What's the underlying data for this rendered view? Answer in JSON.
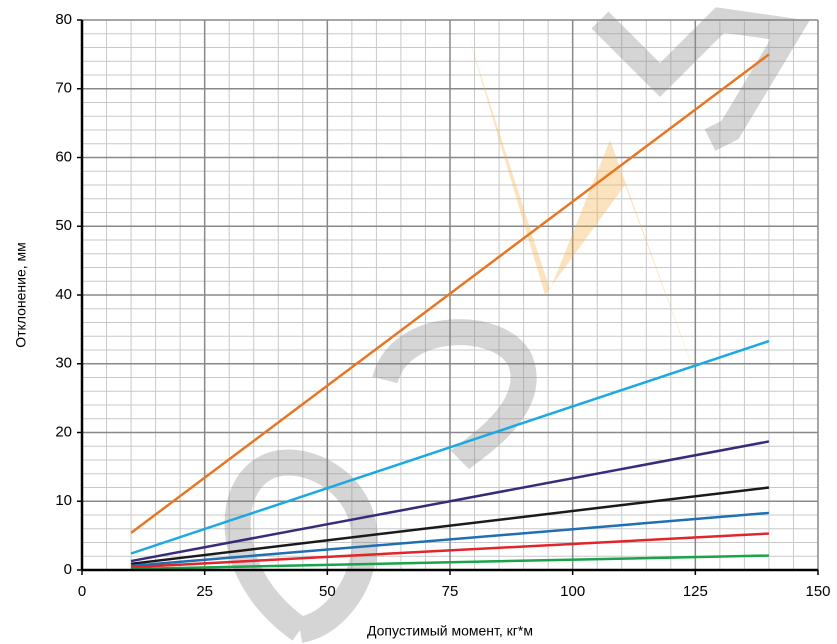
{
  "chart_data": {
    "type": "line",
    "x_label": "Допустимый момент, кг*м",
    "y_label": "Отклонение, мм",
    "xlim": [
      0,
      150
    ],
    "xticks": [
      0,
      25,
      50,
      75,
      100,
      125,
      150
    ],
    "ylim": [
      0,
      80
    ],
    "yticks": [
      0,
      10,
      20,
      30,
      40,
      50,
      60,
      70,
      80
    ],
    "grid": true,
    "x": [
      10,
      140
    ],
    "series": [
      {
        "color": "#e87722",
        "values": [
          5.4,
          75
        ]
      },
      {
        "color": "#1ca9e1",
        "values": [
          2.4,
          33.3
        ]
      },
      {
        "color": "#3a2a7a",
        "values": [
          1.3,
          18.7
        ]
      },
      {
        "color": "#1a1a1a",
        "values": [
          0.9,
          12
        ]
      },
      {
        "color": "#1f6fb5",
        "values": [
          0.6,
          8.3
        ]
      },
      {
        "color": "#e3242b",
        "values": [
          0.4,
          5.3
        ]
      },
      {
        "color": "#1aa34a",
        "values": [
          0.15,
          2.1
        ]
      }
    ]
  }
}
